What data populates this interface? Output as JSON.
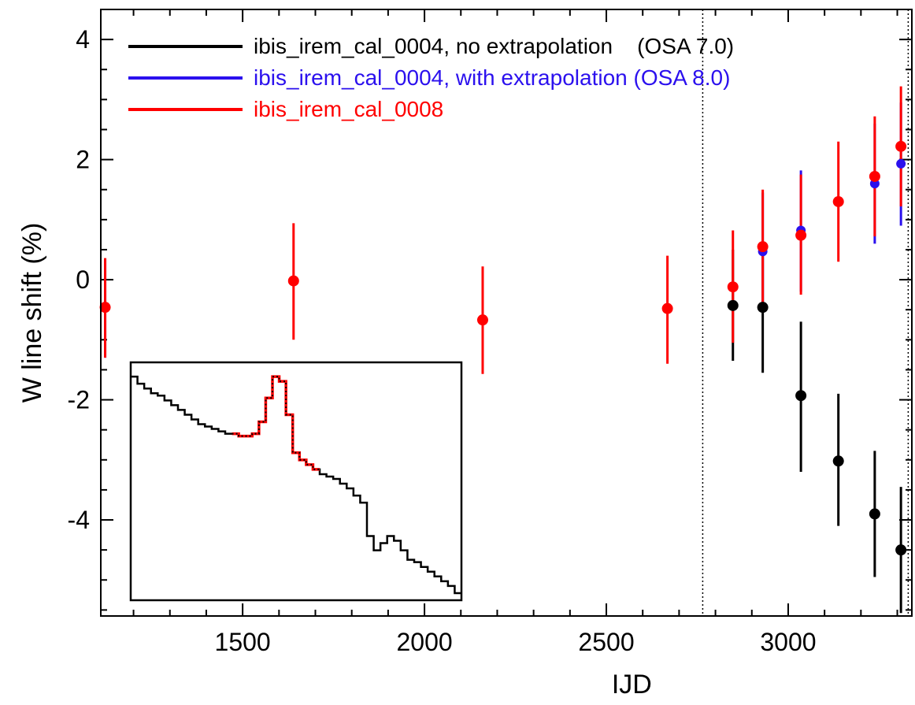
{
  "chart_data": {
    "type": "scatter",
    "xlabel": "IJD",
    "ylabel": "W line shift (%)",
    "xlim": [
      1110,
      3340
    ],
    "ylim": [
      -5.6,
      4.5
    ],
    "x_ticks": [
      1500,
      2000,
      2500,
      3000
    ],
    "x_tick_labels": [
      "1500",
      "2000",
      "2500",
      "3000"
    ],
    "y_ticks": [
      -4,
      -2,
      0,
      2,
      4
    ],
    "y_tick_labels": [
      "-4",
      "-2",
      "0",
      "2",
      "4"
    ],
    "x_minor_step": 100,
    "y_minor_step": 0.5,
    "vertical_markers": [
      2765,
      3330
    ],
    "legend_position": "top-left",
    "series": [
      {
        "name": "ibis_irem_cal_0004, no extrapolation    (OSA 7.0)",
        "color": "#000000",
        "points": [
          {
            "x": 2848,
            "y": -0.43,
            "lo": -1.35,
            "hi": 0.5
          },
          {
            "x": 2930,
            "y": -0.46,
            "lo": -1.55,
            "hi": 0.6
          },
          {
            "x": 3035,
            "y": -1.93,
            "lo": -3.2,
            "hi": -0.7
          },
          {
            "x": 3138,
            "y": -3.02,
            "lo": -4.1,
            "hi": -1.9
          },
          {
            "x": 3238,
            "y": -3.9,
            "lo": -4.95,
            "hi": -2.85
          },
          {
            "x": 3310,
            "y": -4.5,
            "lo": -5.55,
            "hi": -3.45
          }
        ]
      },
      {
        "name": "ibis_irem_cal_0004, with extrapolation (OSA 8.0)",
        "color": "#2b10ee",
        "points": [
          {
            "x": 1122,
            "y": -0.45,
            "lo": -1.3,
            "hi": 0.35
          },
          {
            "x": 2930,
            "y": 0.47,
            "lo": -0.5,
            "hi": 1.45
          },
          {
            "x": 3035,
            "y": 0.82,
            "lo": -0.2,
            "hi": 1.82
          },
          {
            "x": 3238,
            "y": 1.6,
            "lo": 0.6,
            "hi": 2.6
          },
          {
            "x": 3310,
            "y": 1.93,
            "lo": 0.9,
            "hi": 2.95
          }
        ]
      },
      {
        "name": "ibis_irem_cal_0008",
        "color": "#ff0000",
        "points": [
          {
            "x": 1122,
            "y": -0.46,
            "lo": -1.3,
            "hi": 0.36
          },
          {
            "x": 1640,
            "y": -0.02,
            "lo": -1.0,
            "hi": 0.94
          },
          {
            "x": 2160,
            "y": -0.67,
            "lo": -1.57,
            "hi": 0.22
          },
          {
            "x": 2668,
            "y": -0.48,
            "lo": -1.4,
            "hi": 0.4
          },
          {
            "x": 2848,
            "y": -0.12,
            "lo": -1.05,
            "hi": 0.82
          },
          {
            "x": 2930,
            "y": 0.55,
            "lo": -0.4,
            "hi": 1.5
          },
          {
            "x": 3035,
            "y": 0.74,
            "lo": -0.25,
            "hi": 1.75
          },
          {
            "x": 3138,
            "y": 1.3,
            "lo": 0.3,
            "hi": 2.3
          },
          {
            "x": 3238,
            "y": 1.72,
            "lo": 0.72,
            "hi": 2.72
          },
          {
            "x": 3310,
            "y": 2.22,
            "lo": 1.22,
            "hi": 3.22
          }
        ]
      }
    ],
    "inset": {
      "type": "step",
      "xlim": [
        0,
        50
      ],
      "ylim": [
        0,
        100
      ],
      "black_steps": [
        94,
        91,
        89,
        87,
        86,
        84,
        82,
        80,
        78,
        76,
        74,
        73,
        72,
        71,
        70,
        70,
        69,
        69,
        70,
        75,
        85,
        94,
        92,
        78,
        62,
        59,
        57,
        55,
        53,
        52,
        51,
        49,
        47,
        44,
        41,
        27,
        21,
        24,
        27,
        25,
        21,
        17,
        16,
        14,
        12,
        10,
        8,
        6,
        3
      ],
      "red_range": [
        15,
        28
      ]
    }
  }
}
